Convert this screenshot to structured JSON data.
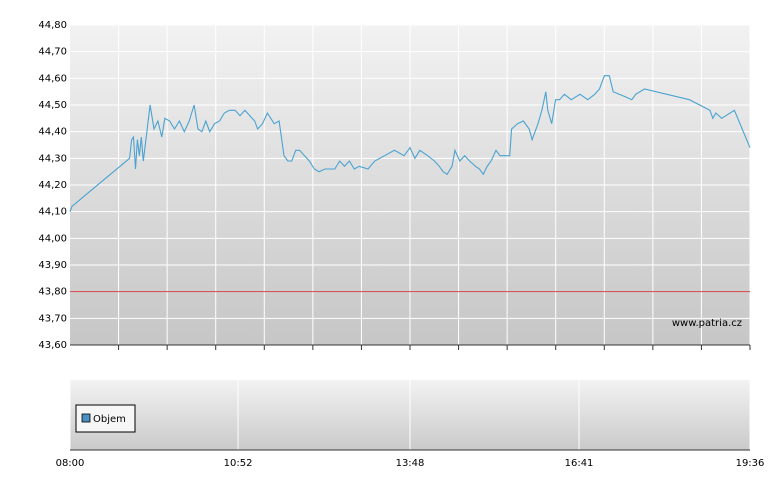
{
  "chart_data": {
    "type": "line",
    "watermark": "www.patria.cz",
    "legend": "Objem",
    "legend_color": "#4a90c0",
    "grid": true,
    "reference_line": 43.8,
    "reference_color": "#d04040",
    "xlim": [
      "08:00",
      "19:36"
    ],
    "xticks": [
      "08:00",
      "10:52",
      "13:48",
      "16:41",
      "19:36"
    ],
    "ylim": [
      43.6,
      44.8
    ],
    "yticks": [
      {
        "value": 43.6,
        "label": "43,60"
      },
      {
        "value": 43.7,
        "label": "43,70"
      },
      {
        "value": 43.8,
        "label": "43,80"
      },
      {
        "value": 43.9,
        "label": "43,90"
      },
      {
        "value": 44.0,
        "label": "44,00"
      },
      {
        "value": 44.1,
        "label": "44,10"
      },
      {
        "value": 44.2,
        "label": "44,20"
      },
      {
        "value": 44.3,
        "label": "44,30"
      },
      {
        "value": 44.4,
        "label": "44,40"
      },
      {
        "value": 44.5,
        "label": "44,50"
      },
      {
        "value": 44.6,
        "label": "44,60"
      },
      {
        "value": 44.7,
        "label": "44,70"
      },
      {
        "value": 44.8,
        "label": "44,80"
      }
    ],
    "x": [
      "08:00",
      "08:02",
      "09:01",
      "09:03",
      "09:05",
      "09:07",
      "09:09",
      "09:11",
      "09:13",
      "09:15",
      "09:19",
      "09:22",
      "09:26",
      "09:30",
      "09:34",
      "09:37",
      "09:42",
      "09:47",
      "09:52",
      "09:57",
      "10:02",
      "10:07",
      "10:11",
      "10:15",
      "10:19",
      "10:23",
      "10:28",
      "10:33",
      "10:38",
      "10:43",
      "10:49",
      "10:54",
      "10:59",
      "11:04",
      "11:09",
      "11:12",
      "11:17",
      "11:22",
      "11:29",
      "11:34",
      "11:39",
      "11:43",
      "11:47",
      "11:51",
      "11:55",
      "12:00",
      "12:05",
      "12:10",
      "12:15",
      "12:21",
      "12:31",
      "12:36",
      "12:41",
      "12:46",
      "12:51",
      "12:56",
      "13:05",
      "13:12",
      "13:22",
      "13:32",
      "13:37",
      "13:42",
      "13:48",
      "13:53",
      "13:58",
      "14:06",
      "14:13",
      "14:18",
      "14:22",
      "14:26",
      "14:31",
      "14:34",
      "14:39",
      "14:44",
      "14:49",
      "14:55",
      "14:59",
      "15:03",
      "15:07",
      "15:11",
      "15:16",
      "15:20",
      "15:30",
      "15:32",
      "15:38",
      "15:44",
      "15:50",
      "15:53",
      "15:59",
      "16:03",
      "16:07",
      "16:09",
      "16:13",
      "16:17",
      "16:21",
      "16:26",
      "16:33",
      "16:42",
      "16:50",
      "16:57",
      "17:02",
      "17:07",
      "17:12",
      "17:16",
      "17:22",
      "17:29",
      "17:35",
      "17:39",
      "17:48",
      "18:34",
      "18:55",
      "18:58",
      "19:01",
      "19:07",
      "19:20",
      "19:36"
    ],
    "series": [
      {
        "color": "#4aa3d0",
        "values": [
          44.1,
          44.12,
          44.3,
          44.37,
          44.38,
          44.26,
          44.37,
          44.31,
          44.38,
          44.29,
          44.41,
          44.5,
          44.41,
          44.44,
          44.38,
          44.45,
          44.44,
          44.41,
          44.44,
          44.4,
          44.44,
          44.5,
          44.41,
          44.4,
          44.44,
          44.4,
          44.43,
          44.44,
          44.47,
          44.48,
          44.48,
          44.46,
          44.48,
          44.46,
          44.44,
          44.41,
          44.43,
          44.47,
          44.43,
          44.44,
          44.31,
          44.29,
          44.29,
          44.33,
          44.33,
          44.31,
          44.29,
          44.26,
          44.25,
          44.26,
          44.26,
          44.29,
          44.27,
          44.29,
          44.26,
          44.27,
          44.26,
          44.29,
          44.31,
          44.33,
          44.32,
          44.31,
          44.34,
          44.3,
          44.33,
          44.31,
          44.29,
          44.27,
          44.25,
          44.24,
          44.27,
          44.33,
          44.29,
          44.31,
          44.29,
          44.27,
          44.26,
          44.24,
          44.27,
          44.29,
          44.33,
          44.31,
          44.31,
          44.41,
          44.43,
          44.44,
          44.41,
          44.37,
          44.43,
          44.48,
          44.55,
          44.48,
          44.43,
          44.52,
          44.52,
          44.54,
          44.52,
          44.54,
          44.52,
          44.54,
          44.56,
          44.61,
          44.61,
          44.55,
          44.54,
          44.53,
          44.52,
          44.54,
          44.56,
          44.52,
          44.48,
          44.45,
          44.47,
          44.45,
          44.48,
          44.34
        ]
      }
    ]
  }
}
